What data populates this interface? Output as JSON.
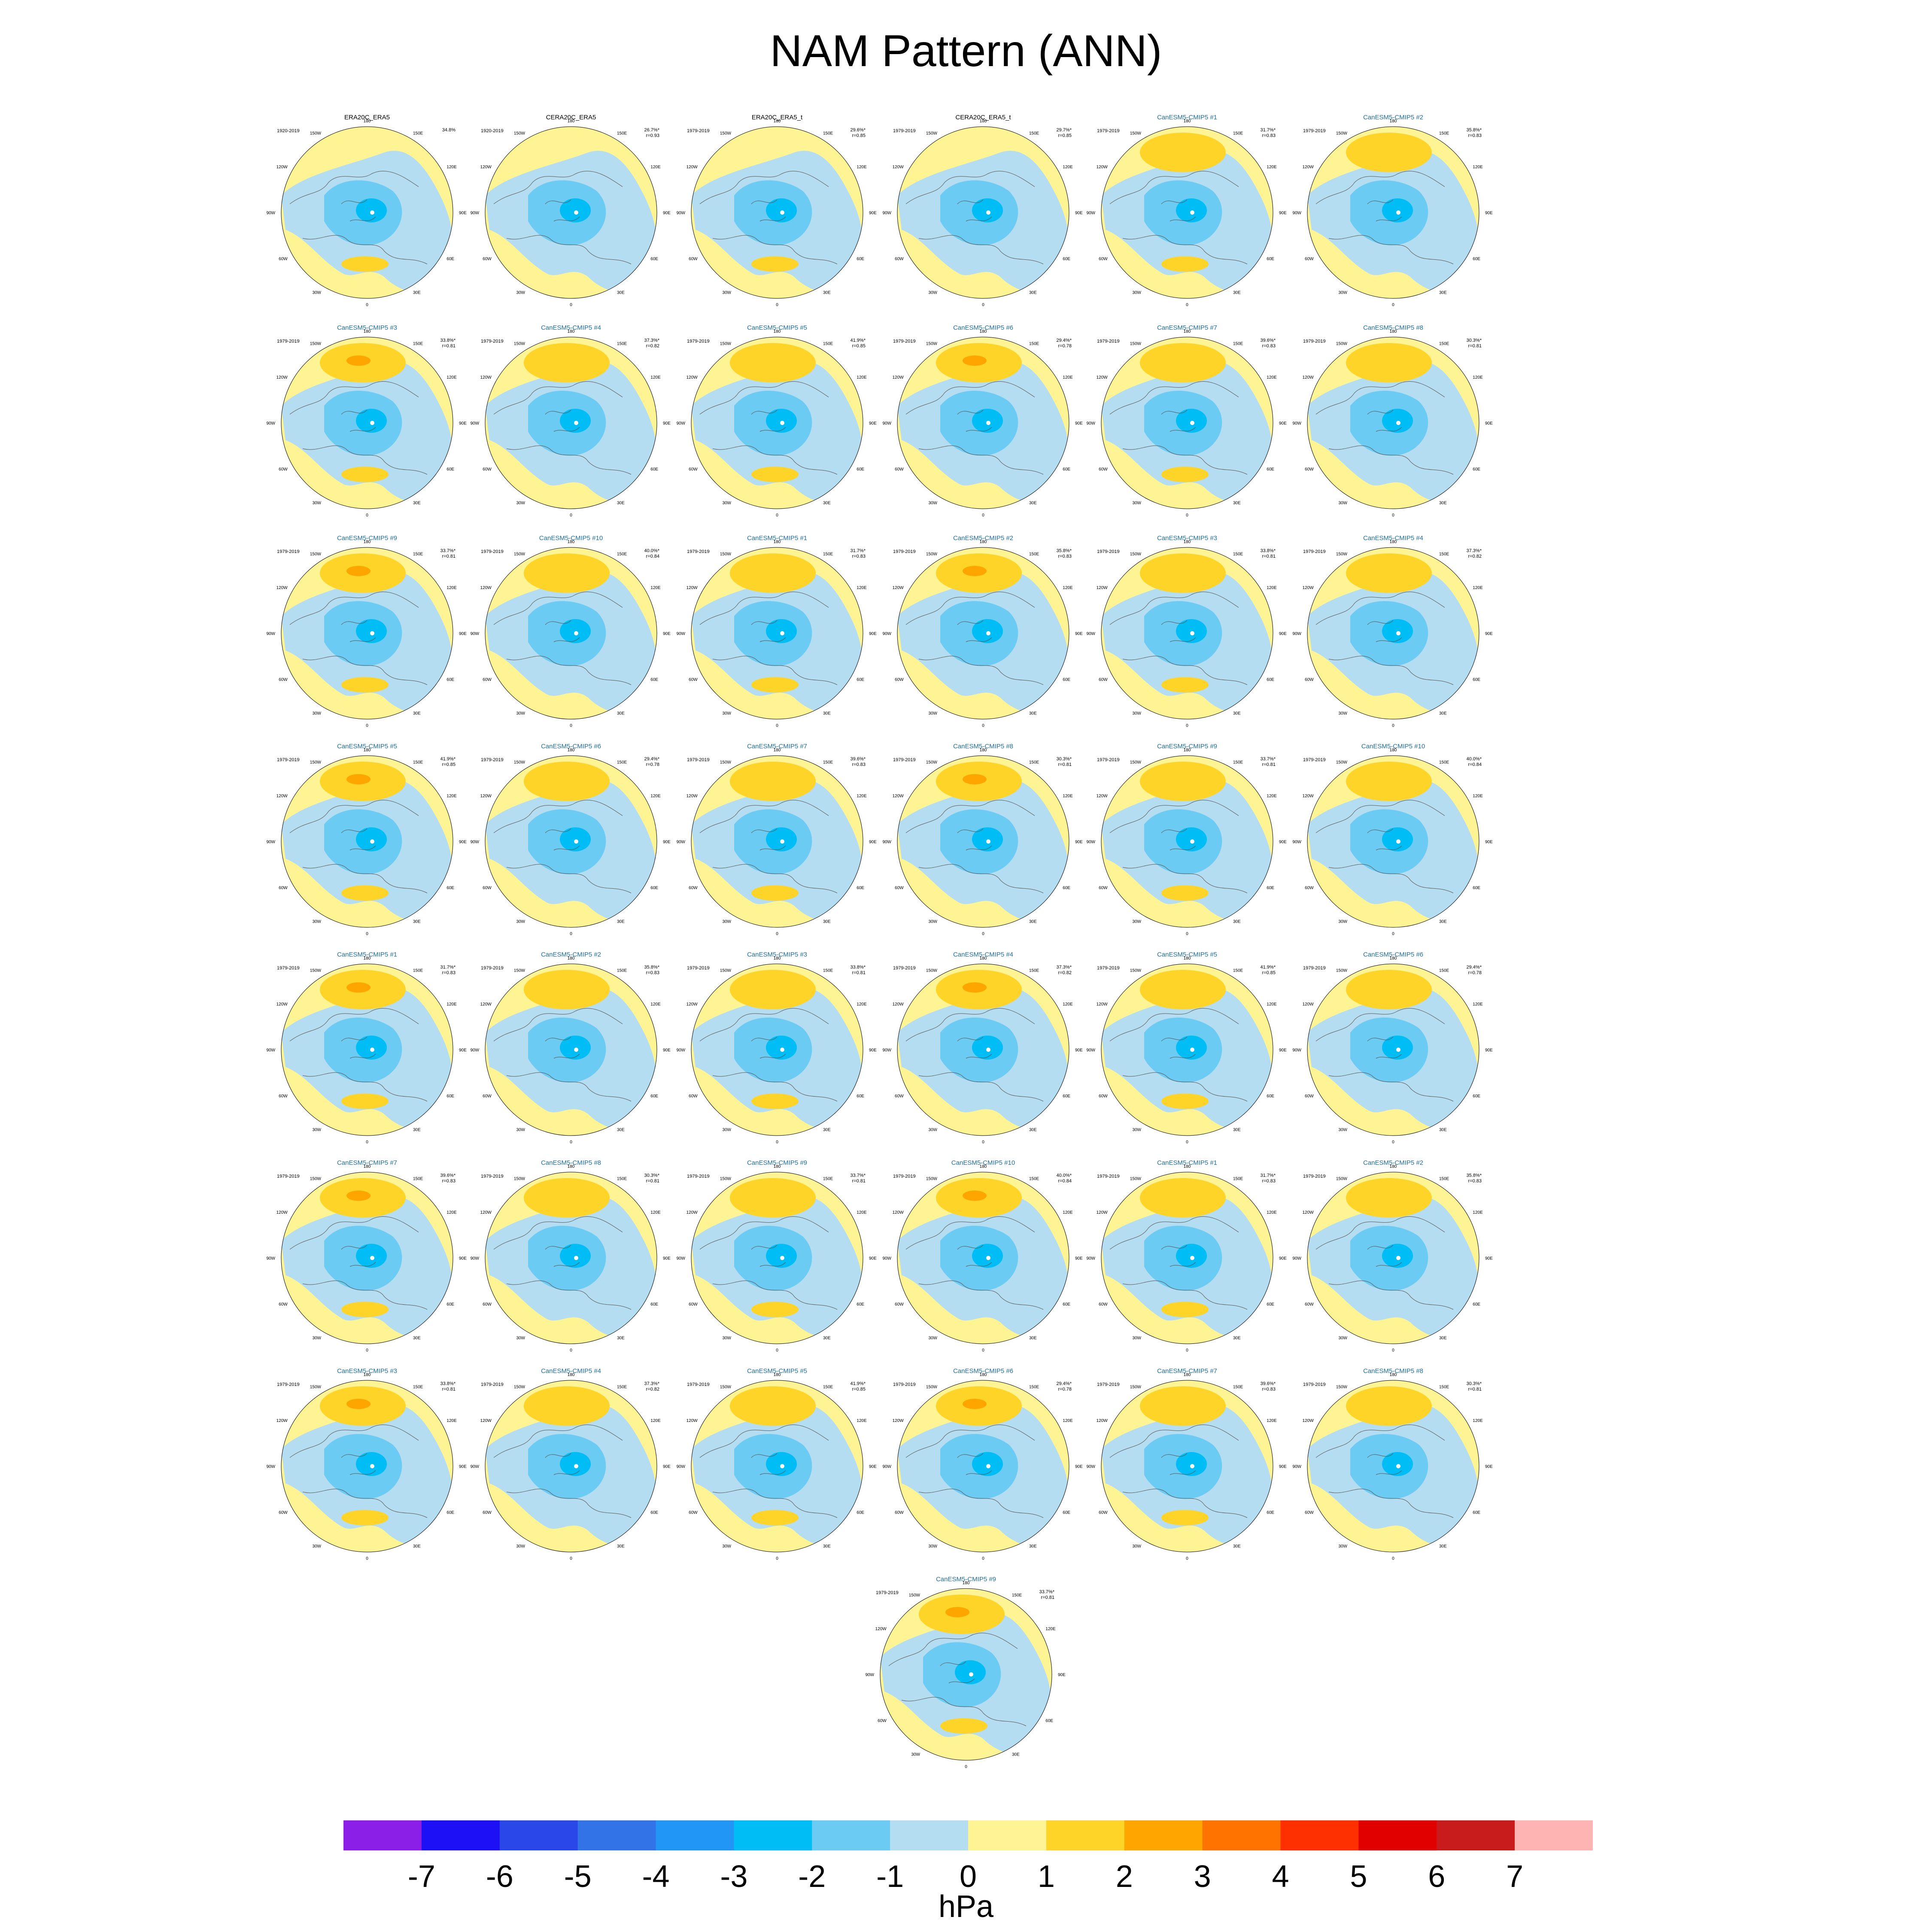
{
  "title": "NAM Pattern (ANN)",
  "units": "hPa",
  "colorbar": {
    "colors": [
      "#8B1FE8",
      "#1E10F5",
      "#2A48E8",
      "#3273E8",
      "#2196F5",
      "#00BEF5",
      "#6CCBF2",
      "#B5DDF2",
      "#FFF494",
      "#FFD428",
      "#FFA500",
      "#FF7400",
      "#FF3000",
      "#E00000",
      "#C81C1C",
      "#FFB4B4"
    ],
    "labels": [
      "-7",
      "-6",
      "-5",
      "-4",
      "-3",
      "-2",
      "-1",
      "0",
      "1",
      "2",
      "3",
      "4",
      "5",
      "6",
      "7"
    ]
  },
  "lon_labels": [
    "180",
    "150E",
    "120E",
    "90E",
    "60E",
    "30E",
    "0",
    "30W",
    "60W",
    "90W",
    "120W",
    "150W"
  ],
  "panels": [
    {
      "title": "ERA20C_ERA5",
      "period": "1920-2019",
      "var": "34.8%",
      "r": ""
    },
    {
      "title": "CERA20C_ERA5",
      "period": "1920-2019",
      "var": "26.7%*",
      "r": "r=0.93"
    },
    {
      "title": "ERA20C_ERA5_t",
      "period": "1979-2019",
      "var": "29.6%*",
      "r": "r=0.85"
    },
    {
      "title": "CERA20C_ERA5_t",
      "period": "1979-2019",
      "var": "29.7%*",
      "r": "r=0.85"
    },
    {
      "title": "CanESM5-CMIP5 #1",
      "period": "1979-2019",
      "var": "31.7%*",
      "r": "r=0.83"
    },
    {
      "title": "CanESM5-CMIP5 #2",
      "period": "1979-2019",
      "var": "35.8%*",
      "r": "r=0.83"
    },
    {
      "title": "CanESM5-CMIP5 #3",
      "period": "1979-2019",
      "var": "33.8%*",
      "r": "r=0.81"
    },
    {
      "title": "CanESM5-CMIP5 #4",
      "period": "1979-2019",
      "var": "37.3%*",
      "r": "r=0.82"
    },
    {
      "title": "CanESM5-CMIP5 #5",
      "period": "1979-2019",
      "var": "41.9%*",
      "r": "r=0.85"
    },
    {
      "title": "CanESM5-CMIP5 #6",
      "period": "1979-2019",
      "var": "29.4%*",
      "r": "r=0.78"
    },
    {
      "title": "CanESM5-CMIP5 #7",
      "period": "1979-2019",
      "var": "39.6%*",
      "r": "r=0.83"
    },
    {
      "title": "CanESM5-CMIP5 #8",
      "period": "1979-2019",
      "var": "30.3%*",
      "r": "r=0.81"
    },
    {
      "title": "CanESM5-CMIP5 #9",
      "period": "1979-2019",
      "var": "33.7%*",
      "r": "r=0.81"
    },
    {
      "title": "CanESM5-CMIP5 #10",
      "period": "1979-2019",
      "var": "40.0%*",
      "r": "r=0.84"
    },
    {
      "title": "CanESM5-CMIP5 #1",
      "period": "1979-2019",
      "var": "31.7%*",
      "r": "r=0.83"
    },
    {
      "title": "CanESM5-CMIP5 #2",
      "period": "1979-2019",
      "var": "35.8%*",
      "r": "r=0.83"
    },
    {
      "title": "CanESM5-CMIP5 #3",
      "period": "1979-2019",
      "var": "33.8%*",
      "r": "r=0.81"
    },
    {
      "title": "CanESM5-CMIP5 #4",
      "period": "1979-2019",
      "var": "37.3%*",
      "r": "r=0.82"
    },
    {
      "title": "CanESM5-CMIP5 #5",
      "period": "1979-2019",
      "var": "41.9%*",
      "r": "r=0.85"
    },
    {
      "title": "CanESM5-CMIP5 #6",
      "period": "1979-2019",
      "var": "29.4%*",
      "r": "r=0.78"
    },
    {
      "title": "CanESM5-CMIP5 #7",
      "period": "1979-2019",
      "var": "39.6%*",
      "r": "r=0.83"
    },
    {
      "title": "CanESM5-CMIP5 #8",
      "period": "1979-2019",
      "var": "30.3%*",
      "r": "r=0.81"
    },
    {
      "title": "CanESM5-CMIP5 #9",
      "period": "1979-2019",
      "var": "33.7%*",
      "r": "r=0.81"
    },
    {
      "title": "CanESM5-CMIP5 #10",
      "period": "1979-2019",
      "var": "40.0%*",
      "r": "r=0.84"
    },
    {
      "title": "CanESM5-CMIP5 #1",
      "period": "1979-2019",
      "var": "31.7%*",
      "r": "r=0.83"
    },
    {
      "title": "CanESM5-CMIP5 #2",
      "period": "1979-2019",
      "var": "35.8%*",
      "r": "r=0.83"
    },
    {
      "title": "CanESM5-CMIP5 #3",
      "period": "1979-2019",
      "var": "33.8%*",
      "r": "r=0.81"
    },
    {
      "title": "CanESM5-CMIP5 #4",
      "period": "1979-2019",
      "var": "37.3%*",
      "r": "r=0.82"
    },
    {
      "title": "CanESM5-CMIP5 #5",
      "period": "1979-2019",
      "var": "41.9%*",
      "r": "r=0.85"
    },
    {
      "title": "CanESM5-CMIP5 #6",
      "period": "1979-2019",
      "var": "29.4%*",
      "r": "r=0.78"
    },
    {
      "title": "CanESM5-CMIP5 #7",
      "period": "1979-2019",
      "var": "39.6%*",
      "r": "r=0.83"
    },
    {
      "title": "CanESM5-CMIP5 #8",
      "period": "1979-2019",
      "var": "30.3%*",
      "r": "r=0.81"
    },
    {
      "title": "CanESM5-CMIP5 #9",
      "period": "1979-2019",
      "var": "33.7%*",
      "r": "r=0.81"
    },
    {
      "title": "CanESM5-CMIP5 #10",
      "period": "1979-2019",
      "var": "40.0%*",
      "r": "r=0.84"
    },
    {
      "title": "CanESM5-CMIP5 #1",
      "period": "1979-2019",
      "var": "31.7%*",
      "r": "r=0.83"
    },
    {
      "title": "CanESM5-CMIP5 #2",
      "period": "1979-2019",
      "var": "35.8%*",
      "r": "r=0.83"
    },
    {
      "title": "CanESM5-CMIP5 #3",
      "period": "1979-2019",
      "var": "33.8%*",
      "r": "r=0.81"
    },
    {
      "title": "CanESM5-CMIP5 #4",
      "period": "1979-2019",
      "var": "37.3%*",
      "r": "r=0.82"
    },
    {
      "title": "CanESM5-CMIP5 #5",
      "period": "1979-2019",
      "var": "41.9%*",
      "r": "r=0.85"
    },
    {
      "title": "CanESM5-CMIP5 #6",
      "period": "1979-2019",
      "var": "29.4%*",
      "r": "r=0.78"
    },
    {
      "title": "CanESM5-CMIP5 #7",
      "period": "1979-2019",
      "var": "39.6%*",
      "r": "r=0.83"
    },
    {
      "title": "CanESM5-CMIP5 #8",
      "period": "1979-2019",
      "var": "30.3%*",
      "r": "r=0.81"
    },
    {
      "title": "CanESM5-CMIP5 #9",
      "period": "1979-2019",
      "var": "33.7%*",
      "r": "r=0.81"
    }
  ]
}
